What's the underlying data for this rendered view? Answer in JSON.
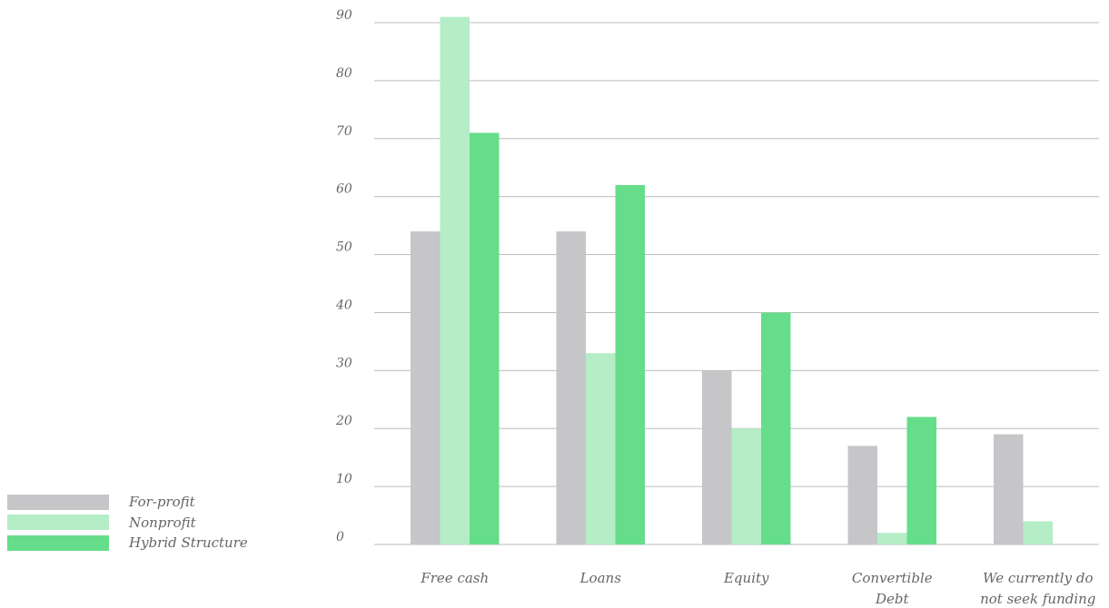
{
  "chart_data": {
    "type": "bar",
    "categories": [
      [
        "Free cash"
      ],
      [
        "Loans"
      ],
      [
        "Equity"
      ],
      [
        "Convertible",
        "Debt"
      ],
      [
        "We currently do",
        "not seek funding"
      ]
    ],
    "series": [
      {
        "name": "For-profit",
        "color": "#c6c6c8",
        "values": [
          54,
          54,
          30,
          17,
          19
        ]
      },
      {
        "name": "Nonprofit",
        "color": "#b4edc6",
        "values": [
          91,
          33,
          20,
          2,
          4
        ]
      },
      {
        "name": "Hybrid Structure",
        "color": "#66dd8a",
        "values": [
          71,
          62,
          40,
          22,
          0
        ]
      }
    ],
    "yticks": [
      "0",
      "10",
      "20",
      "30",
      "40",
      "50",
      "60",
      "70",
      "80",
      "90"
    ],
    "ylim": [
      0,
      90
    ],
    "grid": true,
    "legend_position": "bottom-left"
  }
}
